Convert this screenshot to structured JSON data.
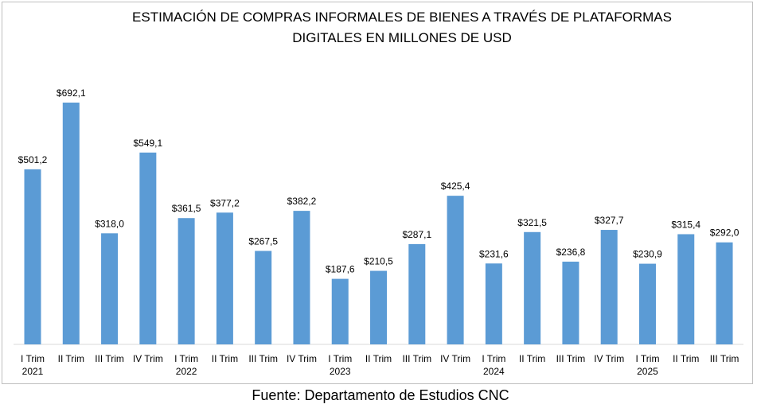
{
  "chart_data": {
    "type": "bar",
    "title_lines": [
      "ESTIMACIÓN DE COMPRAS INFORMALES DE BIENES A TRAVÉS DE PLATAFORMAS",
      "DIGITALES EN MILLONES DE USD"
    ],
    "categories": [
      "I Trim",
      "II Trim",
      "III Trim",
      "IV Trim",
      "I Trim",
      "II Trim",
      "III Trim",
      "IV Trim",
      "I Trim",
      "II Trim",
      "III Trim",
      "IV Trim",
      "I Trim",
      "II Trim",
      "III Trim",
      "IV Trim",
      "I Trim",
      "II Trim",
      "III Trim"
    ],
    "category_years": [
      "2021",
      "",
      "",
      "",
      "2022",
      "",
      "",
      "",
      "2023",
      "",
      "",
      "",
      "2024",
      "",
      "",
      "",
      "2025",
      "",
      ""
    ],
    "values": [
      501.2,
      692.1,
      318.0,
      549.1,
      361.5,
      377.2,
      267.5,
      382.2,
      187.6,
      210.5,
      287.1,
      425.4,
      231.6,
      321.5,
      236.8,
      327.7,
      230.9,
      315.4,
      292.0
    ],
    "data_labels": [
      "$501,2",
      "$692,1",
      "$318,0",
      "$549,1",
      "$361,5",
      "$377,2",
      "$267,5",
      "$382,2",
      "$187,6",
      "$210,5",
      "$287,1",
      "$425,4",
      "$231,6",
      "$321,5",
      "$236,8",
      "$327,7",
      "$230,9",
      "$315,4",
      "$292,0"
    ],
    "xlabel": "",
    "ylabel": "",
    "ylim": [
      0,
      700
    ],
    "grid": false,
    "legend": "none",
    "bar_color": "#5b9bd5"
  },
  "footer": "Fuente: Departamento de Estudios CNC"
}
